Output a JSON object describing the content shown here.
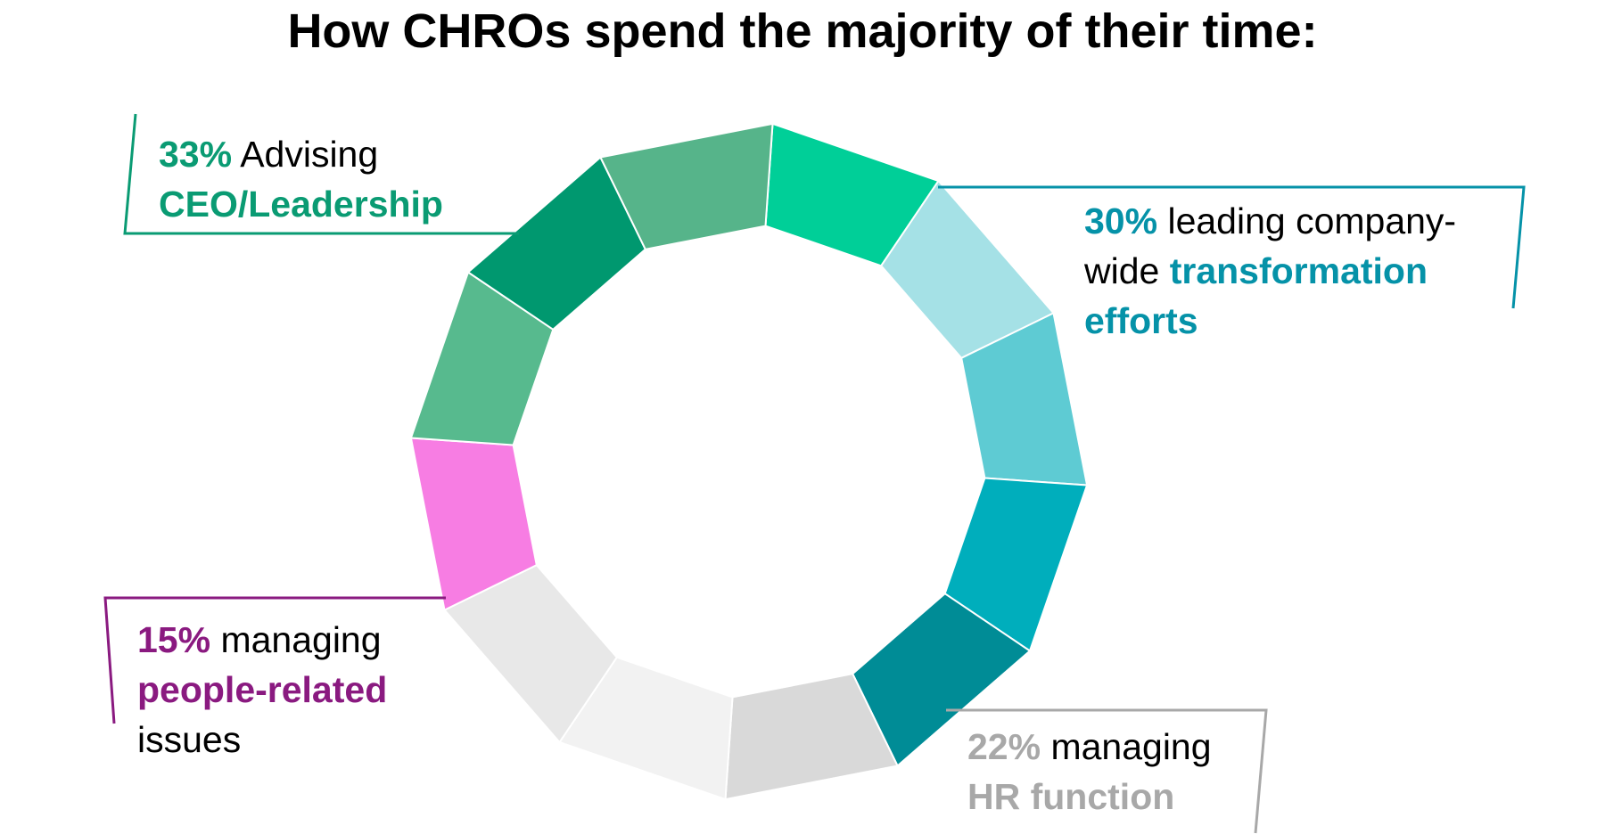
{
  "chart_data": {
    "type": "pie",
    "style": "segmented-ring",
    "title": "How CHROs spend the majority of their time:",
    "segments": [
      {
        "category": "Advising CEO/Leadership",
        "value": 33,
        "color": "#0a9b73"
      },
      {
        "category": "leading company-wide transformation efforts",
        "value": 30,
        "color": "#0592a8"
      },
      {
        "category": "managing HR function",
        "value": 22,
        "color": "#a8a8a8"
      },
      {
        "category": "managing people-related issues",
        "value": 15,
        "color": "#8a1a80"
      }
    ],
    "ring_colors": [
      "#00cf98",
      "#a5e1e6",
      "#5ecbd3",
      "#00aebc",
      "#008c96",
      "#d9d9d9",
      "#f2f2f2",
      "#e8e8e8",
      "#f77de3",
      "#57ba8e",
      "#00986f",
      "#56b48a"
    ]
  },
  "callouts": {
    "ceo": {
      "pct": "33%",
      "text1": " Advising",
      "text2": "CEO/Leadership",
      "color": "#0a9b73"
    },
    "transform": {
      "pct": "30%",
      "text1": " leading company-",
      "text2a": "wide ",
      "text2b": "transformation",
      "text3": "efforts",
      "color": "#0592a8"
    },
    "people": {
      "pct": "15%",
      "text1": " managing",
      "text2": "people-related",
      "text3": "issues",
      "color": "#8a1a80"
    },
    "hr": {
      "pct": "22%",
      "text1": " managing",
      "text2": "HR function",
      "color": "#a8a8a8"
    }
  }
}
